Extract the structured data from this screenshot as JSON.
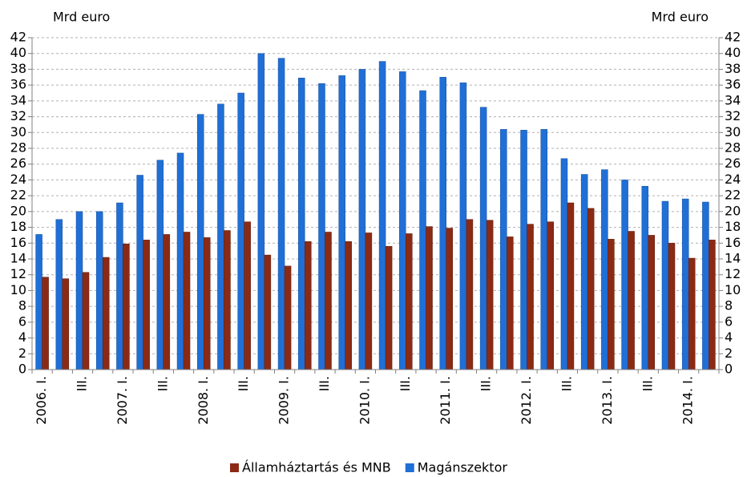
{
  "chart_data": {
    "type": "bar",
    "y_unit_left": "Mrd euro",
    "y_unit_right": "Mrd euro",
    "categories": [
      "2006. I.",
      null,
      "III.",
      null,
      "2007. I.",
      null,
      "III.",
      null,
      "2008. I.",
      null,
      "III.",
      null,
      "2009. I.",
      null,
      "III.",
      null,
      "2010. I.",
      null,
      "III.",
      null,
      "2011. I.",
      null,
      "III.",
      null,
      "2012. I.",
      null,
      "III.",
      null,
      "2013. I.",
      null,
      "III.",
      null,
      "2014. I.",
      null
    ],
    "series": [
      {
        "name": "Magánszektor",
        "color": "#1f6fd6",
        "values": [
          17.1,
          19.0,
          20.0,
          20.0,
          21.1,
          24.6,
          26.5,
          27.4,
          32.3,
          33.6,
          35.0,
          40.0,
          39.4,
          36.9,
          36.2,
          37.2,
          38.0,
          39.0,
          37.7,
          35.3,
          37.0,
          36.3,
          33.2,
          30.4,
          30.3,
          30.4,
          26.7,
          24.7,
          25.3,
          24.0,
          23.2,
          21.3,
          21.6,
          21.2
        ]
      },
      {
        "name": "Államháztartás és MNB",
        "color": "#8b2a14",
        "values": [
          11.7,
          11.5,
          12.3,
          14.2,
          15.9,
          16.4,
          17.1,
          17.4,
          16.7,
          17.6,
          18.7,
          14.5,
          13.1,
          16.2,
          17.4,
          16.2,
          17.3,
          15.6,
          17.2,
          18.1,
          17.9,
          19.0,
          18.9,
          16.8,
          18.4,
          18.7,
          21.1,
          20.4,
          16.5,
          17.5,
          17.0,
          16.0,
          14.1,
          16.4
        ]
      }
    ],
    "legend_order": [
      1,
      0
    ],
    "ylim": [
      0,
      42
    ],
    "yticks": [
      0,
      2,
      4,
      6,
      8,
      10,
      12,
      14,
      16,
      18,
      20,
      22,
      24,
      26,
      28,
      30,
      32,
      34,
      36,
      38,
      40,
      42
    ],
    "y2lim": [
      0,
      42
    ],
    "y2ticks": [
      0,
      2,
      4,
      6,
      8,
      10,
      12,
      14,
      16,
      18,
      20,
      22,
      24,
      26,
      28,
      30,
      32,
      34,
      36,
      38,
      40,
      42
    ],
    "grid": true,
    "legend": "bottom"
  }
}
